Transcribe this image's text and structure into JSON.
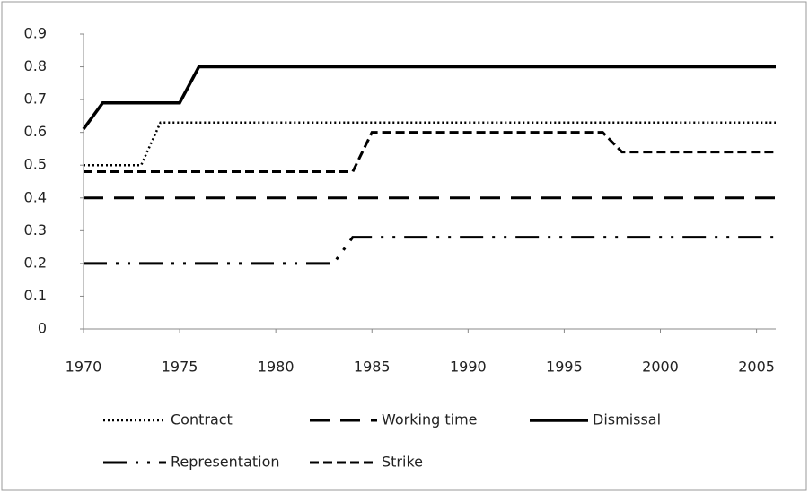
{
  "chart_data": {
    "type": "line",
    "x": [
      1970,
      1971,
      1972,
      1973,
      1974,
      1975,
      1976,
      1977,
      1978,
      1979,
      1980,
      1981,
      1982,
      1983,
      1984,
      1985,
      1986,
      1987,
      1988,
      1989,
      1990,
      1991,
      1992,
      1993,
      1994,
      1995,
      1996,
      1997,
      1998,
      1999,
      2000,
      2001,
      2002,
      2003,
      2004,
      2005,
      2006
    ],
    "series": [
      {
        "name": "Contract",
        "color": "#000000",
        "dash": "dotted",
        "values": [
          0.5,
          0.5,
          0.5,
          0.5,
          0.63,
          0.63,
          0.63,
          0.63,
          0.63,
          0.63,
          0.63,
          0.63,
          0.63,
          0.63,
          0.63,
          0.63,
          0.63,
          0.63,
          0.63,
          0.63,
          0.63,
          0.63,
          0.63,
          0.63,
          0.63,
          0.63,
          0.63,
          0.63,
          0.63,
          0.63,
          0.63,
          0.63,
          0.63,
          0.63,
          0.63,
          0.63,
          0.63
        ]
      },
      {
        "name": "Working time",
        "color": "#000000",
        "dash": "long-dash",
        "values": [
          0.4,
          0.4,
          0.4,
          0.4,
          0.4,
          0.4,
          0.4,
          0.4,
          0.4,
          0.4,
          0.4,
          0.4,
          0.4,
          0.4,
          0.4,
          0.4,
          0.4,
          0.4,
          0.4,
          0.4,
          0.4,
          0.4,
          0.4,
          0.4,
          0.4,
          0.4,
          0.4,
          0.4,
          0.4,
          0.4,
          0.4,
          0.4,
          0.4,
          0.4,
          0.4,
          0.4,
          0.4
        ]
      },
      {
        "name": "Dismissal",
        "color": "#000000",
        "dash": "solid",
        "values": [
          0.61,
          0.69,
          0.69,
          0.69,
          0.69,
          0.69,
          0.8,
          0.8,
          0.8,
          0.8,
          0.8,
          0.8,
          0.8,
          0.8,
          0.8,
          0.8,
          0.8,
          0.8,
          0.8,
          0.8,
          0.8,
          0.8,
          0.8,
          0.8,
          0.8,
          0.8,
          0.8,
          0.8,
          0.8,
          0.8,
          0.8,
          0.8,
          0.8,
          0.8,
          0.8,
          0.8,
          0.8
        ]
      },
      {
        "name": "Representation",
        "color": "#000000",
        "dash": "dash-dot-dot",
        "values": [
          0.2,
          0.2,
          0.2,
          0.2,
          0.2,
          0.2,
          0.2,
          0.2,
          0.2,
          0.2,
          0.2,
          0.2,
          0.2,
          0.2,
          0.28,
          0.28,
          0.28,
          0.28,
          0.28,
          0.28,
          0.28,
          0.28,
          0.28,
          0.28,
          0.28,
          0.28,
          0.28,
          0.28,
          0.28,
          0.28,
          0.28,
          0.28,
          0.28,
          0.28,
          0.28,
          0.28,
          0.28
        ]
      },
      {
        "name": "Strike",
        "color": "#000000",
        "dash": "dashed",
        "values": [
          0.48,
          0.48,
          0.48,
          0.48,
          0.48,
          0.48,
          0.48,
          0.48,
          0.48,
          0.48,
          0.48,
          0.48,
          0.48,
          0.48,
          0.48,
          0.6,
          0.6,
          0.6,
          0.6,
          0.6,
          0.6,
          0.6,
          0.6,
          0.6,
          0.6,
          0.6,
          0.6,
          0.6,
          0.54,
          0.54,
          0.54,
          0.54,
          0.54,
          0.54,
          0.54,
          0.54,
          0.54
        ]
      }
    ],
    "xlim": [
      1970,
      2006
    ],
    "xticks": [
      1970,
      1975,
      1980,
      1985,
      1990,
      1995,
      2000,
      2005
    ],
    "ylim": [
      0,
      0.9
    ],
    "yticks": [
      0,
      0.1,
      0.2,
      0.3,
      0.4,
      0.5,
      0.6,
      0.7,
      0.8,
      0.9
    ],
    "grid": false,
    "legend": "bottom"
  }
}
